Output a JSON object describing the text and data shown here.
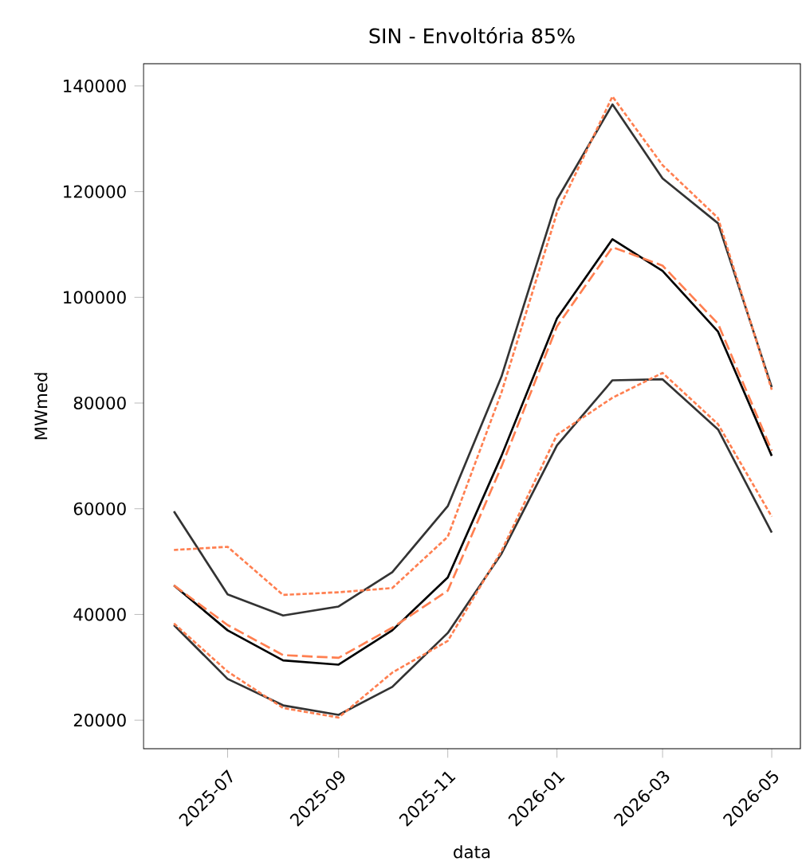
{
  "chart_data": {
    "type": "line",
    "title": "SIN - Envoltória 85%",
    "xlabel": "data",
    "ylabel": "MWmed",
    "x": [
      "2025-06-01",
      "2025-07-01",
      "2025-08-01",
      "2025-09-01",
      "2025-10-01",
      "2025-11-01",
      "2025-12-01",
      "2026-01-01",
      "2026-02-01",
      "2026-03-01",
      "2026-04-01",
      "2026-05-01"
    ],
    "series": [
      {
        "color": "#333333",
        "line_style": "solid",
        "values": [
          59500,
          43800,
          39800,
          41500,
          48000,
          60500,
          85000,
          118500,
          136500,
          122500,
          114000,
          83000
        ]
      },
      {
        "color": "#333333",
        "line_style": "solid",
        "values": [
          38000,
          27800,
          22800,
          21000,
          26300,
          36500,
          51500,
          72000,
          84300,
          84500,
          75000,
          55500
        ]
      },
      {
        "color": "#ff7f50",
        "line_style": "dotted",
        "values": [
          52200,
          52800,
          43700,
          44200,
          45000,
          54700,
          82000,
          116000,
          138000,
          125000,
          115000,
          82500
        ]
      },
      {
        "color": "#ff7f50",
        "line_style": "dotted",
        "values": [
          38300,
          29200,
          22300,
          20500,
          29000,
          35000,
          52000,
          74000,
          81000,
          85700,
          76000,
          58500
        ]
      },
      {
        "color": "#000000",
        "line_style": "solid",
        "values": [
          45500,
          37000,
          31300,
          30500,
          37000,
          47000,
          70000,
          96000,
          111000,
          105000,
          93500,
          70000
        ]
      },
      {
        "color": "#ff7f50",
        "line_style": "dashed",
        "values": [
          45500,
          38000,
          32300,
          31800,
          37500,
          44500,
          68000,
          94500,
          109500,
          106000,
          95000,
          71000
        ]
      }
    ],
    "xlim": [
      "2025-05-15",
      "2026-05-17"
    ],
    "xticks": [
      {
        "value": "2025-07-01",
        "label": "2025-07"
      },
      {
        "value": "2025-09-01",
        "label": "2025-09"
      },
      {
        "value": "2025-11-01",
        "label": "2025-11"
      },
      {
        "value": "2026-01-01",
        "label": "2026-01"
      },
      {
        "value": "2026-03-01",
        "label": "2026-03"
      },
      {
        "value": "2026-05-01",
        "label": "2026-05"
      }
    ],
    "ylim": [
      14600,
      144200
    ],
    "yticks": [
      20000,
      40000,
      60000,
      80000,
      100000,
      120000,
      140000
    ],
    "grid": false
  }
}
